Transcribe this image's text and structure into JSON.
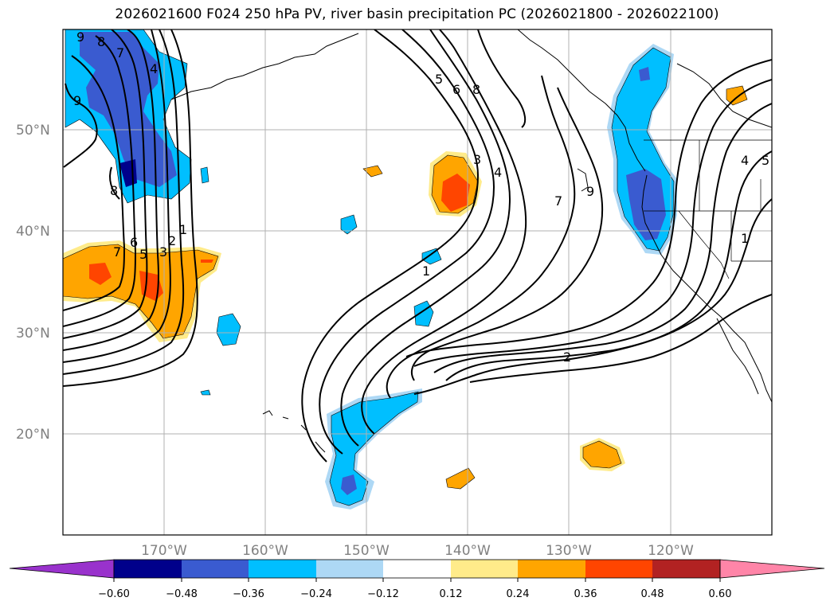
{
  "title": "2026021600 F024 250 hPa PV, river basin precipitation PC (2026021800 - 2026022100)",
  "map": {
    "lat_labels": [
      {
        "text": "50°N",
        "lat": 50
      },
      {
        "text": "40°N",
        "lat": 40
      },
      {
        "text": "30°N",
        "lat": 30
      },
      {
        "text": "20°N",
        "lat": 20
      }
    ],
    "lon_labels": [
      {
        "text": "170°W",
        "lon": -170
      },
      {
        "text": "160°W",
        "lon": -160
      },
      {
        "text": "150°W",
        "lon": -150
      },
      {
        "text": "140°W",
        "lon": -140
      },
      {
        "text": "130°W",
        "lon": -130
      },
      {
        "text": "120°W",
        "lon": -120
      }
    ],
    "lon_range": [
      -180,
      -110
    ],
    "lat_range": [
      10,
      60
    ],
    "contour_labels": [
      "9",
      "8",
      "7",
      "4",
      "9",
      "8",
      "1",
      "2",
      "3",
      "5",
      "6",
      "7",
      "5",
      "6",
      "8",
      "3",
      "4",
      "1",
      "7",
      "9",
      "2",
      "4",
      "5",
      "1"
    ]
  },
  "colorbar": {
    "colors": [
      "#9932cc",
      "#00008b",
      "#3a5bd0",
      "#00bfff",
      "#add8f5",
      "#ffffff",
      "#ffeb8a",
      "#ffa500",
      "#ff4500",
      "#b22222",
      "#ff85a8"
    ],
    "tick_labels": [
      "−0.60",
      "−0.48",
      "−0.36",
      "−0.24",
      "−0.12",
      "0.12",
      "0.24",
      "0.36",
      "0.48",
      "0.60"
    ]
  }
}
